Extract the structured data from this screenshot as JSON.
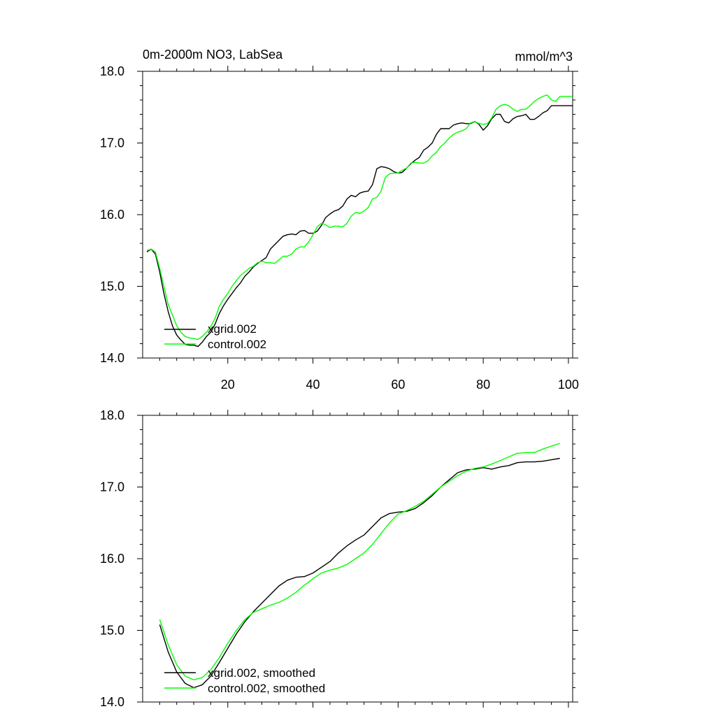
{
  "colors": {
    "series_xgrid": "#000000",
    "series_control": "#00ff00",
    "axes": "#000000"
  },
  "chart_data": [
    {
      "type": "line",
      "title": "0m-2000m NO3, LabSea",
      "units_label": "mmol/m^3",
      "xlabel": "",
      "ylabel": "",
      "xlim": [
        0,
        101
      ],
      "ylim": [
        14.0,
        18.0
      ],
      "x_ticks": [
        20,
        40,
        60,
        80,
        100
      ],
      "x_tick_labels": [
        "20",
        "40",
        "60",
        "80",
        "100"
      ],
      "y_ticks": [
        14,
        15,
        16,
        17,
        18
      ],
      "y_tick_labels": [
        "14.0",
        "15.0",
        "16.0",
        "17.0",
        "18.0"
      ],
      "legend_placement": "bottom-left",
      "series": [
        {
          "name": "xgrid.002",
          "color": "#000000",
          "x": [
            1,
            2,
            3,
            4,
            5,
            6,
            7,
            8,
            9,
            10,
            11,
            12,
            13,
            14,
            15,
            16,
            17,
            18,
            19,
            20,
            21,
            22,
            23,
            24,
            25,
            26,
            27,
            28,
            29,
            30,
            31,
            32,
            33,
            34,
            35,
            36,
            37,
            38,
            39,
            40,
            41,
            42,
            43,
            44,
            45,
            46,
            47,
            48,
            49,
            50,
            51,
            52,
            53,
            54,
            55,
            56,
            57,
            58,
            59,
            60,
            61,
            62,
            63,
            64,
            65,
            66,
            67,
            68,
            69,
            70,
            71,
            72,
            73,
            74,
            75,
            76,
            77,
            78,
            79,
            80,
            81,
            82,
            83,
            84,
            85,
            86,
            87,
            88,
            89,
            90,
            91,
            92,
            93,
            94,
            95,
            96,
            97,
            98,
            99,
            100,
            101
          ],
          "values": [
            15.48,
            15.52,
            15.45,
            15.2,
            14.9,
            14.65,
            14.45,
            14.32,
            14.25,
            14.19,
            14.18,
            14.18,
            14.16,
            14.22,
            14.3,
            14.36,
            14.47,
            14.62,
            14.73,
            14.82,
            14.9,
            14.98,
            15.05,
            15.14,
            15.2,
            15.27,
            15.32,
            15.36,
            15.4,
            15.52,
            15.58,
            15.64,
            15.7,
            15.72,
            15.73,
            15.72,
            15.77,
            15.78,
            15.74,
            15.74,
            15.77,
            15.85,
            15.96,
            16.01,
            16.05,
            16.07,
            16.12,
            16.22,
            16.27,
            16.25,
            16.3,
            16.32,
            16.33,
            16.42,
            16.64,
            16.67,
            16.66,
            16.64,
            16.6,
            16.58,
            16.59,
            16.65,
            16.71,
            16.76,
            16.8,
            16.9,
            16.94,
            17.0,
            17.12,
            17.2,
            17.2,
            17.2,
            17.25,
            17.27,
            17.28,
            17.27,
            17.27,
            17.3,
            17.26,
            17.18,
            17.24,
            17.34,
            17.4,
            17.4,
            17.3,
            17.28,
            17.34,
            17.37,
            17.38,
            17.4,
            17.33,
            17.33,
            17.37,
            17.42,
            17.45,
            17.52,
            17.52,
            17.52,
            17.52,
            17.52,
            17.52
          ]
        },
        {
          "name": "control.002",
          "color": "#00ff00",
          "x": [
            1,
            2,
            3,
            4,
            5,
            6,
            7,
            8,
            9,
            10,
            11,
            12,
            13,
            14,
            15,
            16,
            17,
            18,
            19,
            20,
            21,
            22,
            23,
            24,
            25,
            26,
            27,
            28,
            29,
            30,
            31,
            32,
            33,
            34,
            35,
            36,
            37,
            38,
            39,
            40,
            41,
            42,
            43,
            44,
            45,
            46,
            47,
            48,
            49,
            50,
            51,
            52,
            53,
            54,
            55,
            56,
            57,
            58,
            59,
            60,
            61,
            62,
            63,
            64,
            65,
            66,
            67,
            68,
            69,
            70,
            71,
            72,
            73,
            74,
            75,
            76,
            77,
            78,
            79,
            80,
            81,
            82,
            83,
            84,
            85,
            86,
            87,
            88,
            89,
            90,
            91,
            92,
            93,
            94,
            95,
            96,
            97,
            98,
            99,
            100,
            101
          ],
          "values": [
            15.5,
            15.52,
            15.48,
            15.25,
            15.0,
            14.75,
            14.6,
            14.45,
            14.36,
            14.3,
            14.28,
            14.27,
            14.26,
            14.3,
            14.36,
            14.44,
            14.55,
            14.72,
            14.82,
            14.9,
            15.0,
            15.08,
            15.15,
            15.2,
            15.25,
            15.28,
            15.33,
            15.35,
            15.33,
            15.33,
            15.32,
            15.37,
            15.42,
            15.42,
            15.45,
            15.52,
            15.55,
            15.55,
            15.62,
            15.72,
            15.83,
            15.88,
            15.86,
            15.82,
            15.84,
            15.84,
            15.83,
            15.88,
            15.98,
            16.03,
            16.02,
            16.05,
            16.1,
            16.22,
            16.24,
            16.33,
            16.52,
            16.57,
            16.58,
            16.58,
            16.62,
            16.65,
            16.72,
            16.73,
            16.72,
            16.72,
            16.75,
            16.82,
            16.87,
            16.95,
            17.0,
            17.07,
            17.12,
            17.15,
            17.17,
            17.2,
            17.28,
            17.3,
            17.27,
            17.26,
            17.27,
            17.35,
            17.47,
            17.52,
            17.54,
            17.52,
            17.47,
            17.44,
            17.47,
            17.47,
            17.52,
            17.58,
            17.62,
            17.65,
            17.67,
            17.6,
            17.58,
            17.65,
            17.65,
            17.65,
            17.65
          ]
        }
      ]
    },
    {
      "type": "line",
      "title": "",
      "xlabel": "",
      "ylabel": "",
      "xlim": [
        0,
        101
      ],
      "ylim": [
        14.0,
        18.0
      ],
      "x_ticks": [
        20,
        40,
        60,
        80,
        100
      ],
      "x_tick_labels": [],
      "y_ticks": [
        14,
        15,
        16,
        17,
        18
      ],
      "y_tick_labels": [
        "14.0",
        "15.0",
        "16.0",
        "17.0",
        "18.0"
      ],
      "legend_placement": "bottom-left",
      "series": [
        {
          "name": "xgrid.002, smoothed",
          "color": "#000000",
          "x": [
            4,
            6,
            8,
            10,
            12,
            14,
            16,
            18,
            20,
            22,
            24,
            26,
            28,
            30,
            32,
            34,
            36,
            38,
            40,
            42,
            44,
            46,
            48,
            50,
            52,
            54,
            56,
            58,
            60,
            62,
            64,
            66,
            68,
            70,
            72,
            74,
            76,
            78,
            80,
            82,
            84,
            86,
            88,
            90,
            92,
            94,
            96,
            98
          ],
          "values": [
            15.08,
            14.7,
            14.42,
            14.26,
            14.2,
            14.24,
            14.36,
            14.55,
            14.75,
            14.95,
            15.12,
            15.26,
            15.38,
            15.5,
            15.62,
            15.7,
            15.74,
            15.75,
            15.8,
            15.88,
            15.96,
            16.08,
            16.18,
            16.26,
            16.33,
            16.45,
            16.57,
            16.63,
            16.65,
            16.66,
            16.7,
            16.78,
            16.88,
            17.0,
            17.1,
            17.2,
            17.24,
            17.25,
            17.27,
            17.25,
            17.28,
            17.3,
            17.34,
            17.35,
            17.35,
            17.36,
            17.38,
            17.4
          ]
        },
        {
          "name": "control.002, smoothed",
          "color": "#00ff00",
          "x": [
            4,
            6,
            8,
            10,
            12,
            14,
            16,
            18,
            20,
            22,
            24,
            26,
            28,
            30,
            32,
            34,
            36,
            38,
            40,
            42,
            44,
            46,
            48,
            50,
            52,
            54,
            56,
            58,
            60,
            62,
            64,
            66,
            68,
            70,
            72,
            74,
            76,
            78,
            80,
            82,
            84,
            86,
            88,
            90,
            92,
            94,
            96,
            98
          ],
          "values": [
            15.15,
            14.8,
            14.52,
            14.36,
            14.31,
            14.34,
            14.45,
            14.62,
            14.82,
            15.0,
            15.15,
            15.25,
            15.3,
            15.35,
            15.39,
            15.45,
            15.53,
            15.63,
            15.72,
            15.8,
            15.84,
            15.87,
            15.92,
            16.0,
            16.08,
            16.2,
            16.35,
            16.5,
            16.62,
            16.67,
            16.73,
            16.8,
            16.9,
            17.0,
            17.08,
            17.16,
            17.22,
            17.26,
            17.28,
            17.32,
            17.37,
            17.42,
            17.47,
            17.48,
            17.48,
            17.53,
            17.57,
            17.61
          ]
        }
      ]
    }
  ]
}
